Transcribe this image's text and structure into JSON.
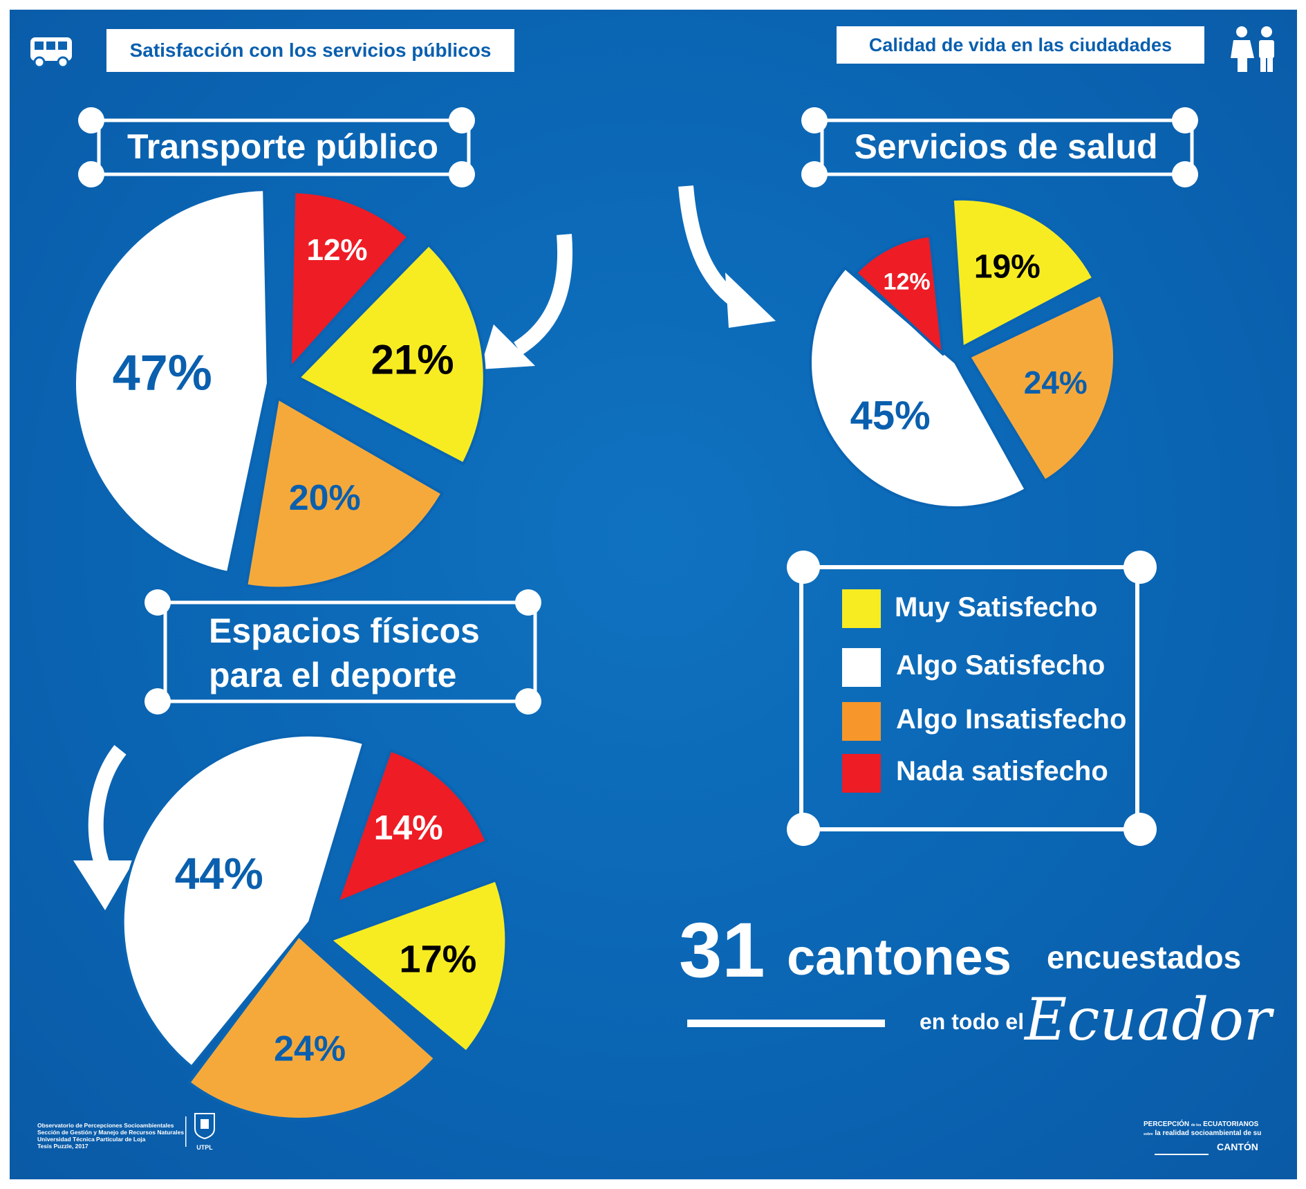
{
  "header": {
    "left_title": "Satisfacción con los servicios públicos",
    "right_title": "Calidad de vida en las ciudadades",
    "bus_icon": "bus-icon",
    "people_icon": "people-icon"
  },
  "colors": {
    "background": "#0a64b2",
    "muy": "#f7ec22",
    "algo_sat": "#ffffff",
    "algo_insat": "#f6a93b",
    "nada": "#ee1c25",
    "label_blue": "#0a5fae"
  },
  "chart_data": [
    {
      "type": "pie",
      "title": "Transporte público",
      "slices": [
        {
          "category": "Muy Satisfecho",
          "value": 21,
          "label": "21%"
        },
        {
          "category": "Algo Satisfecho",
          "value": 47,
          "label": "47%"
        },
        {
          "category": "Algo Insatisfecho",
          "value": 20,
          "label": "20%"
        },
        {
          "category": "Nada satisfecho",
          "value": 12,
          "label": "12%"
        }
      ]
    },
    {
      "type": "pie",
      "title": "Servicios de salud",
      "slices": [
        {
          "category": "Muy Satisfecho",
          "value": 19,
          "label": "19%"
        },
        {
          "category": "Algo Satisfecho",
          "value": 45,
          "label": "45%"
        },
        {
          "category": "Algo Insatisfecho",
          "value": 24,
          "label": "24%"
        },
        {
          "category": "Nada satisfecho",
          "value": 12,
          "label": "12%"
        }
      ]
    },
    {
      "type": "pie",
      "title": "Espacios físicos para el deporte",
      "title_lines": [
        "Espacios físicos",
        "para el deporte"
      ],
      "slices": [
        {
          "category": "Muy Satisfecho",
          "value": 17,
          "label": "17%"
        },
        {
          "category": "Algo Satisfecho",
          "value": 44,
          "label": "44%"
        },
        {
          "category": "Algo Insatisfecho",
          "value": 24,
          "label": "24%"
        },
        {
          "category": "Nada satisfecho",
          "value": 14,
          "label": "14%"
        }
      ]
    }
  ],
  "legend": [
    {
      "label": "Muy Satisfecho",
      "color": "#f7ec22"
    },
    {
      "label": "Algo Satisfecho",
      "color": "#ffffff"
    },
    {
      "label": "Algo Insatisfecho",
      "color": "#f6a93b"
    },
    {
      "label": "Nada satisfecho",
      "color": "#ee1c25"
    }
  ],
  "summary": {
    "number": "31",
    "word": "cantones",
    "word2": "encuestados",
    "prefix": "en todo el",
    "country": "Ecuador"
  },
  "footer": {
    "credits": [
      "Observatorio de Percepciones Socioambientales",
      "Sección de Gestión y Manejo de Recursos Naturales",
      "Universidad Técnica Particular de Loja",
      "Tesis Puzzle, 2017"
    ],
    "logo_text": "UTPL",
    "brand_line1": "PERCEPCIÓN",
    "brand_small1": "de los",
    "brand_line1b": "ECUATORIANOS",
    "brand_small2": "sobre",
    "brand_line2": "la realidad socioambiental de su",
    "brand_line3": "CANTÓN"
  }
}
